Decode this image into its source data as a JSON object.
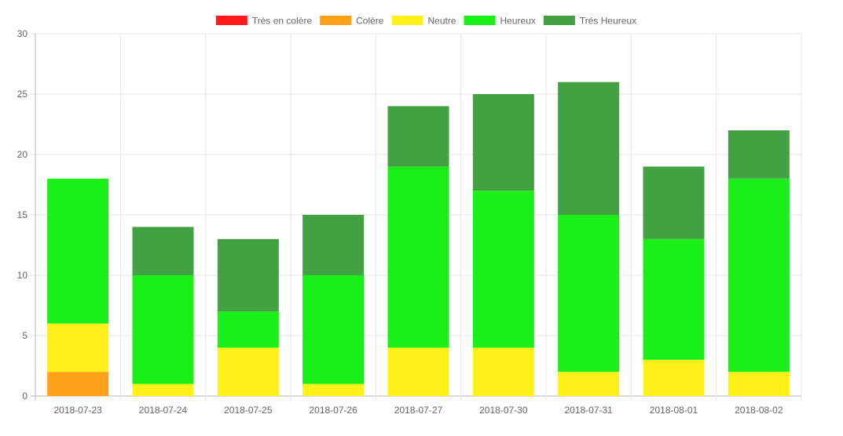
{
  "chart_data": {
    "type": "bar",
    "stacked": true,
    "title": "",
    "xlabel": "",
    "ylabel": "",
    "ylim": [
      0,
      30
    ],
    "yticks": [
      0,
      5,
      10,
      15,
      20,
      25,
      30
    ],
    "grid": true,
    "legend_position": "top",
    "categories": [
      "2018-07-23",
      "2018-07-24",
      "2018-07-25",
      "2018-07-26",
      "2018-07-27",
      "2018-07-30",
      "2018-07-31",
      "2018-08-01",
      "2018-08-02"
    ],
    "series": [
      {
        "name": "Très en colère",
        "color": "#ff1a1a",
        "values": [
          0,
          0,
          0,
          0,
          0,
          0,
          0,
          0,
          0
        ]
      },
      {
        "name": "Colère",
        "color": "#ffa11a",
        "values": [
          2,
          0,
          0,
          0,
          0,
          0,
          0,
          0,
          0
        ]
      },
      {
        "name": "Neutre",
        "color": "#fff01a",
        "values": [
          4,
          1,
          4,
          1,
          4,
          4,
          2,
          3,
          2
        ]
      },
      {
        "name": "Heureux",
        "color": "#1aef1a",
        "values": [
          12,
          9,
          3,
          9,
          15,
          13,
          13,
          10,
          16
        ]
      },
      {
        "name": "Trés Heureux",
        "color": "#43a143",
        "values": [
          0,
          4,
          6,
          5,
          5,
          8,
          11,
          6,
          4
        ]
      }
    ]
  }
}
